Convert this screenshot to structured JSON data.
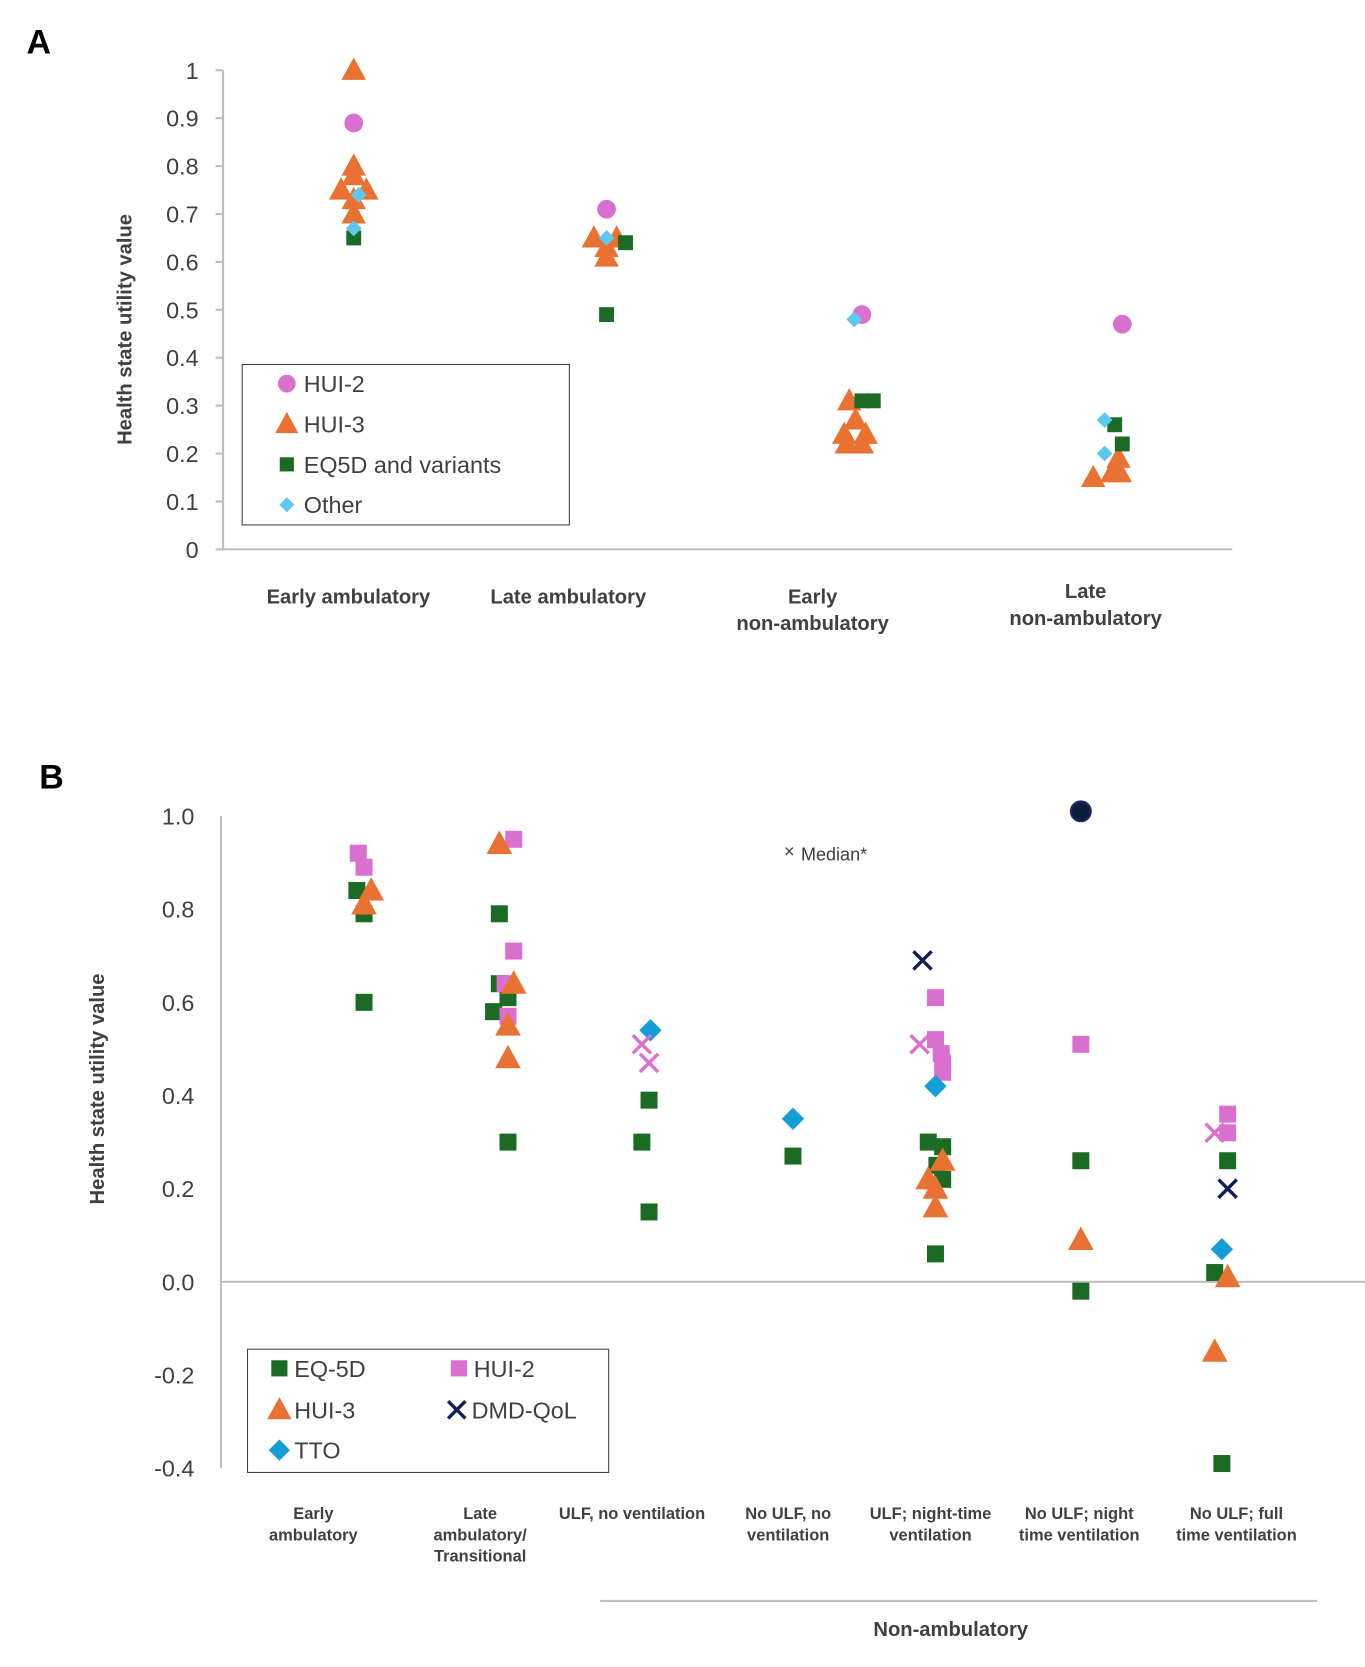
{
  "panel_labels": [
    "A",
    "B"
  ],
  "colors": {
    "hui2": "#d96fcf",
    "hui3": "#e97132",
    "eq5d": "#1b6b25",
    "other": "#5cc8f0",
    "tto": "#139ed8",
    "dmdqol": "#0c1e5b",
    "dark_circle": "#0a1e3c",
    "axis": "#bfbfbf"
  },
  "chart_data": [
    {
      "type": "scatter",
      "title": "A",
      "xlabel": "",
      "ylabel": "Health state utility value",
      "ylim": [
        0,
        1
      ],
      "yticks": [
        "0",
        "0.1",
        "0.2",
        "0.3",
        "0.4",
        "0.5",
        "0.6",
        "0.7",
        "0.8",
        "0.9",
        "1"
      ],
      "grid": false,
      "legend_position": "bottom-left",
      "categories": [
        [
          "Early ambulatory"
        ],
        [
          "Late ambulatory"
        ],
        [
          "Early",
          "non-ambulatory"
        ],
        [
          "Late",
          "non-ambulatory"
        ]
      ],
      "series": [
        {
          "name": "HUI-2",
          "marker": "circle",
          "color_key": "hui2",
          "points": [
            [
              0,
              0.89
            ],
            [
              1,
              0.71
            ],
            [
              2.01,
              0.49
            ],
            [
              3.04,
              0.47
            ]
          ]
        },
        {
          "name": "HUI-3",
          "marker": "triangle",
          "color_key": "hui3",
          "points": [
            [
              0,
              1.0
            ],
            [
              0,
              0.8
            ],
            [
              0,
              0.78
            ],
            [
              -0.05,
              0.75
            ],
            [
              0.05,
              0.75
            ],
            [
              0,
              0.73
            ],
            [
              0,
              0.7
            ],
            [
              0.95,
              0.65
            ],
            [
              1.04,
              0.65
            ],
            [
              1,
              0.63
            ],
            [
              1,
              0.61
            ],
            [
              1.96,
              0.31
            ],
            [
              1.985,
              0.27
            ],
            [
              1.94,
              0.24
            ],
            [
              2.025,
              0.24
            ],
            [
              1.95,
              0.22
            ],
            [
              2.01,
              0.22
            ],
            [
              3.025,
              0.19
            ],
            [
              3.03,
              0.16
            ],
            [
              2.925,
              0.15
            ],
            [
              3,
              0.16
            ]
          ]
        },
        {
          "name": "EQ5D and variants",
          "marker": "square",
          "color_key": "eq5d",
          "points": [
            [
              0,
              0.65
            ],
            [
              1.075,
              0.64
            ],
            [
              1,
              0.49
            ],
            [
              2.01,
              0.31
            ],
            [
              2.055,
              0.31
            ],
            [
              3.01,
              0.26
            ],
            [
              3.04,
              0.22
            ]
          ]
        },
        {
          "name": "Other",
          "marker": "diamond",
          "color_key": "other",
          "points": [
            [
              0.02,
              0.74
            ],
            [
              0,
              0.67
            ],
            [
              1,
              0.65
            ],
            [
              1.98,
              0.48
            ],
            [
              2.97,
              0.27
            ],
            [
              2.97,
              0.2
            ]
          ]
        }
      ]
    },
    {
      "type": "scatter",
      "title": "B",
      "xlabel": "",
      "ylabel": "Health state utility value",
      "ylim": [
        -0.4,
        1.0
      ],
      "yticks": [
        "-0.4",
        "-0.2",
        "0.0",
        "0.2",
        "0.4",
        "0.6",
        "0.8",
        "1.0"
      ],
      "grid": false,
      "legend_position": "bottom-left",
      "categories": [
        [
          "Early",
          "ambulatory"
        ],
        [
          "Late",
          "ambulatory/",
          "Transitional"
        ],
        [
          "ULF, no ventilation"
        ],
        [
          "No ULF,  no",
          "ventilation"
        ],
        [
          "ULF;  night-time",
          "ventilation"
        ],
        [
          "No ULF;  night",
          "time ventilation"
        ],
        [
          "No ULF;  full",
          "time ventilation"
        ]
      ],
      "group_label": "Non-ambulatory",
      "annotation": "Median*",
      "series": [
        {
          "name": "EQ-5D",
          "marker": "square",
          "color_key": "eq5d",
          "points": [
            [
              -0.03,
              0.84
            ],
            [
              0.02,
              0.79
            ],
            [
              0.02,
              0.6
            ],
            [
              0.96,
              0.79
            ],
            [
              0.96,
              0.64
            ],
            [
              1.02,
              0.61
            ],
            [
              0.92,
              0.58
            ],
            [
              1.02,
              0.3
            ],
            [
              2,
              0.39
            ],
            [
              1.95,
              0.3
            ],
            [
              2,
              0.15
            ],
            [
              3,
              0.27
            ],
            [
              3.94,
              0.3
            ],
            [
              4.04,
              0.29
            ],
            [
              4,
              0.25
            ],
            [
              4.04,
              0.22
            ],
            [
              3.99,
              0.06
            ],
            [
              5,
              0.26
            ],
            [
              5,
              -0.02
            ],
            [
              6.02,
              0.26
            ],
            [
              5.93,
              0.02
            ],
            [
              5.98,
              -0.39
            ]
          ]
        },
        {
          "name": "HUI-2",
          "marker": "square",
          "color_key": "hui2",
          "points": [
            [
              -0.02,
              0.92
            ],
            [
              0.02,
              0.89
            ],
            [
              1.06,
              0.95
            ],
            [
              1.06,
              0.71
            ],
            [
              1,
              0.64
            ],
            [
              1.02,
              0.57
            ],
            [
              3.99,
              0.61
            ],
            [
              3.99,
              0.52
            ],
            [
              4.03,
              0.49
            ],
            [
              4.04,
              0.47
            ],
            [
              4.04,
              0.45
            ],
            [
              5,
              0.51
            ],
            [
              6.02,
              0.36
            ],
            [
              6.02,
              0.32
            ]
          ]
        },
        {
          "name": "HUI-3",
          "marker": "triangle",
          "color_key": "hui3",
          "points": [
            [
              0.07,
              0.84
            ],
            [
              0.02,
              0.81
            ],
            [
              0.96,
              0.94
            ],
            [
              1.06,
              0.64
            ],
            [
              1.02,
              0.55
            ],
            [
              1.02,
              0.48
            ],
            [
              4.04,
              0.26
            ],
            [
              3.94,
              0.22
            ],
            [
              3.99,
              0.2
            ],
            [
              3.99,
              0.16
            ],
            [
              5,
              0.09
            ],
            [
              6.02,
              0.01
            ],
            [
              5.93,
              -0.15
            ]
          ]
        },
        {
          "name": "DMD-QoL",
          "marker": "x",
          "color_key": "dmdqol",
          "points": [
            [
              3.9,
              0.69
            ],
            [
              6.02,
              0.2
            ]
          ]
        },
        {
          "name": "TTO",
          "marker": "diamond",
          "color_key": "tto",
          "points": [
            [
              2.01,
              0.54
            ],
            [
              3,
              0.35
            ],
            [
              3.99,
              0.42
            ],
            [
              5.98,
              0.07
            ]
          ]
        },
        {
          "name": "HUI-2 median",
          "marker": "x",
          "color_key": "hui2",
          "in_legend": false,
          "points": [
            [
              1.95,
              0.51
            ],
            [
              2,
              0.47
            ],
            [
              3.88,
              0.51
            ],
            [
              5.93,
              0.32
            ]
          ]
        },
        {
          "name": "",
          "marker": "circle",
          "color_key": "dark_circle",
          "in_legend": false,
          "points": [
            [
              5,
              1.01
            ]
          ]
        }
      ]
    }
  ]
}
